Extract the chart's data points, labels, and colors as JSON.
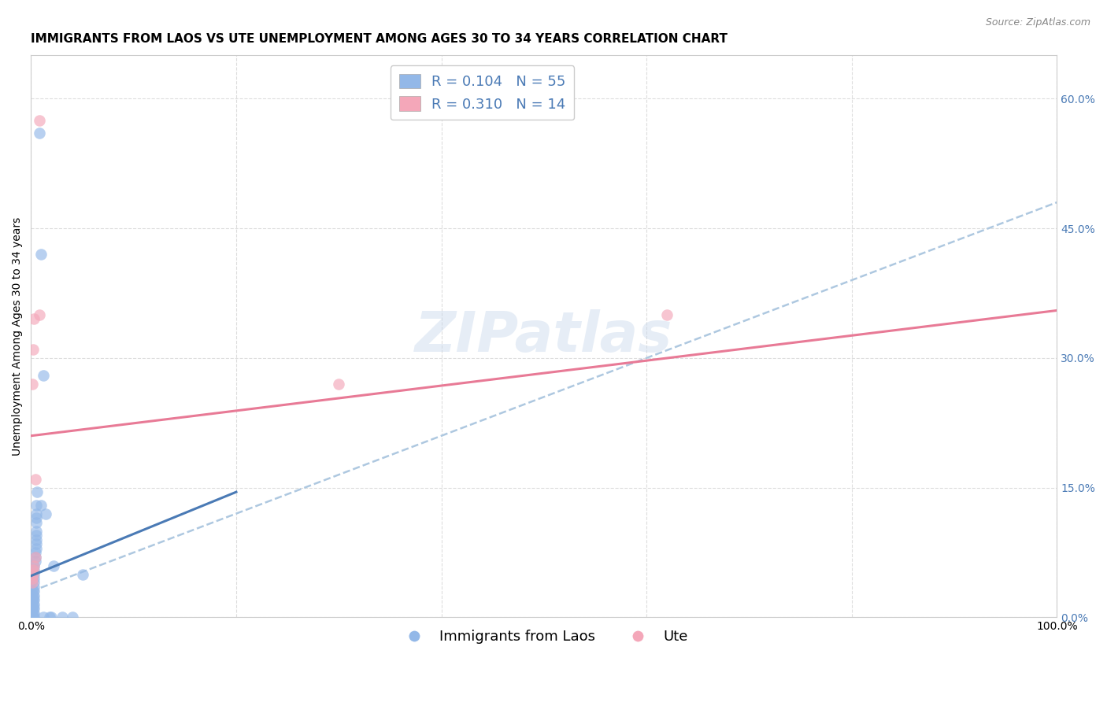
{
  "title": "IMMIGRANTS FROM LAOS VS UTE UNEMPLOYMENT AMONG AGES 30 TO 34 YEARS CORRELATION CHART",
  "source": "Source: ZipAtlas.com",
  "ylabel": "Unemployment Among Ages 30 to 34 years",
  "xlim": [
    0,
    1.0
  ],
  "ylim": [
    0,
    0.65
  ],
  "xticks": [
    0.0,
    0.2,
    0.4,
    0.6,
    0.8,
    1.0
  ],
  "xticklabels": [
    "0.0%",
    "",
    "",
    "",
    "",
    "100.0%"
  ],
  "yticks_right": [
    0.0,
    0.15,
    0.3,
    0.45,
    0.6
  ],
  "yticklabels_right": [
    "0.0%",
    "15.0%",
    "30.0%",
    "45.0%",
    "60.0%"
  ],
  "blue_color": "#93b8e8",
  "pink_color": "#f4a7b9",
  "blue_line_color": "#4a7ab5",
  "pink_line_color": "#e87a96",
  "dashed_line_color": "#aec8e0",
  "background_color": "#ffffff",
  "grid_color": "#dddddd",
  "watermark": "ZIPatlas",
  "blue_scatter": [
    [
      0.008,
      0.56
    ],
    [
      0.01,
      0.42
    ],
    [
      0.012,
      0.28
    ],
    [
      0.005,
      0.13
    ],
    [
      0.005,
      0.12
    ],
    [
      0.005,
      0.115
    ],
    [
      0.005,
      0.11
    ],
    [
      0.005,
      0.1
    ],
    [
      0.005,
      0.095
    ],
    [
      0.005,
      0.09
    ],
    [
      0.005,
      0.085
    ],
    [
      0.005,
      0.08
    ],
    [
      0.004,
      0.075
    ],
    [
      0.004,
      0.07
    ],
    [
      0.004,
      0.065
    ],
    [
      0.003,
      0.06
    ],
    [
      0.003,
      0.055
    ],
    [
      0.003,
      0.05
    ],
    [
      0.003,
      0.045
    ],
    [
      0.003,
      0.04
    ],
    [
      0.003,
      0.035
    ],
    [
      0.003,
      0.03
    ],
    [
      0.003,
      0.025
    ],
    [
      0.003,
      0.02
    ],
    [
      0.003,
      0.015
    ],
    [
      0.003,
      0.01
    ],
    [
      0.003,
      0.005
    ],
    [
      0.003,
      0.0
    ],
    [
      0.002,
      0.0
    ],
    [
      0.002,
      0.005
    ],
    [
      0.002,
      0.01
    ],
    [
      0.002,
      0.015
    ],
    [
      0.002,
      0.02
    ],
    [
      0.002,
      0.025
    ],
    [
      0.002,
      0.03
    ],
    [
      0.001,
      0.0
    ],
    [
      0.001,
      0.01
    ],
    [
      0.001,
      0.02
    ],
    [
      0.0,
      0.0
    ],
    [
      0.0,
      0.01
    ],
    [
      0.0,
      0.02
    ],
    [
      0.0,
      0.03
    ],
    [
      0.0,
      0.04
    ],
    [
      0.01,
      0.13
    ],
    [
      0.014,
      0.12
    ],
    [
      0.018,
      0.0
    ],
    [
      0.022,
      0.06
    ],
    [
      0.012,
      0.0
    ],
    [
      0.006,
      0.145
    ],
    [
      0.05,
      0.05
    ],
    [
      0.04,
      0.0
    ],
    [
      0.03,
      0.0
    ],
    [
      0.02,
      0.0
    ],
    [
      0.0,
      0.005
    ],
    [
      0.0,
      0.015
    ]
  ],
  "pink_scatter": [
    [
      0.008,
      0.575
    ],
    [
      0.008,
      0.35
    ],
    [
      0.003,
      0.345
    ],
    [
      0.002,
      0.31
    ],
    [
      0.001,
      0.27
    ],
    [
      0.004,
      0.16
    ],
    [
      0.004,
      0.07
    ],
    [
      0.003,
      0.06
    ],
    [
      0.002,
      0.055
    ],
    [
      0.002,
      0.05
    ],
    [
      0.001,
      0.045
    ],
    [
      0.001,
      0.04
    ],
    [
      0.62,
      0.35
    ],
    [
      0.3,
      0.27
    ]
  ],
  "blue_trend_x": [
    0.0,
    0.2
  ],
  "blue_trend_y": [
    0.048,
    0.145
  ],
  "pink_trend_x": [
    0.0,
    1.0
  ],
  "pink_trend_y": [
    0.21,
    0.355
  ],
  "dashed_trend_x": [
    0.0,
    1.0
  ],
  "dashed_trend_y": [
    0.03,
    0.48
  ],
  "title_fontsize": 11,
  "axis_label_fontsize": 10,
  "tick_fontsize": 10,
  "legend_fontsize": 13
}
